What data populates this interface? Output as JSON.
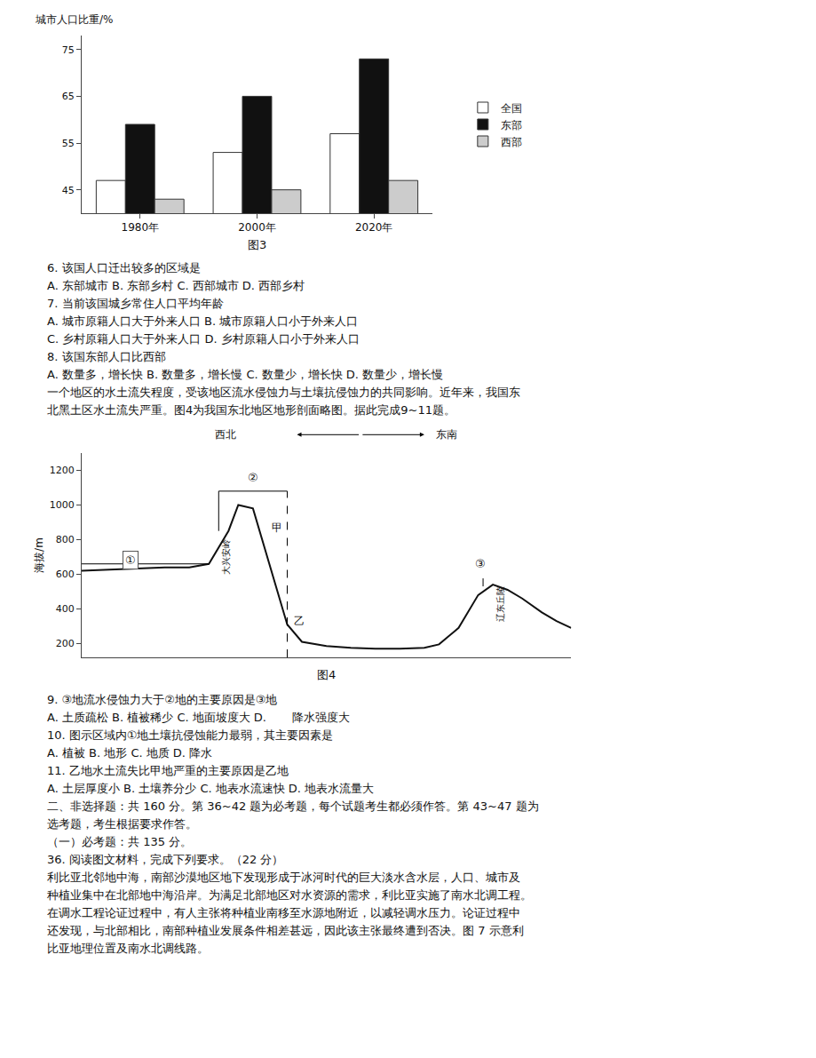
{
  "chart_data": [
    {
      "type": "bar",
      "title": "图3",
      "ylabel": "城市人口比重/%",
      "categories": [
        "1980年",
        "2000年",
        "2020年"
      ],
      "series": [
        {
          "name": "全国",
          "color": "#ffffff",
          "values": [
            47,
            53,
            57
          ]
        },
        {
          "name": "东部",
          "color": "#111111",
          "values": [
            59,
            65,
            73
          ]
        },
        {
          "name": "西部",
          "color": "#cccccc",
          "values": [
            43,
            45,
            47
          ]
        }
      ],
      "ylim": [
        40,
        78
      ],
      "yticks": [
        45,
        55,
        65,
        75
      ],
      "grid": false,
      "legend": "right",
      "annotations": [
        "6. 该国人口迁出较多的区域是",
        "A. 东部城市 B. 东部乡村 C. 西部城市 D. 西部乡村",
        "7. 当前该国城乡常住人口平均年龄",
        "A. 城市原籍人口大于外来人口 B. 城市原籍人口小于外来人口",
        "C. 乡村原籍人口大于外来人口 D. 乡村原籍人口小于外来人口",
        "8. 该国东部人口比西部",
        "A. 数量多，增长快 B. 数量多，增长慢 C. 数量少，增长快 D. 数量少，增长慢",
        "一个地区的水土流失程度，受该地区流水侵蚀力与土壤抗侵蚀力的共同影响。近年来，我国东",
        "北黑土区水土流失严重。图4为我国东北地区地形剖面略图。据此完成9~11题。"
      ]
    },
    {
      "type": "line",
      "title": "图4",
      "ylabel": "海拔/m",
      "x": [
        0.0,
        0.04,
        0.08,
        0.12,
        0.17,
        0.22,
        0.26,
        0.3,
        0.32,
        0.35,
        0.39,
        0.42,
        0.45,
        0.5,
        0.55,
        0.6,
        0.65,
        0.7,
        0.73,
        0.77,
        0.81,
        0.84,
        0.87,
        0.9,
        0.94,
        0.97,
        1.0
      ],
      "values": [
        620,
        625,
        630,
        635,
        640,
        640,
        660,
        850,
        1000,
        980,
        600,
        310,
        210,
        185,
        175,
        170,
        170,
        175,
        195,
        290,
        480,
        540,
        510,
        460,
        380,
        330,
        290
      ],
      "color": "#111111",
      "xlim": [
        0,
        1
      ],
      "xticks": [],
      "ylim": [
        120,
        1300
      ],
      "yticks": [
        200,
        400,
        600,
        800,
        1000,
        1200
      ],
      "grid": false,
      "tick_labels": "y",
      "annotations": [
        "西北",
        "东南",
        "①",
        "②",
        "③",
        "甲",
        "乙",
        "大兴安岭",
        "辽东丘陵",
        "9. ③地流水侵蚀力大于②地的主要原因是③地",
        "A. 土质疏松 B. 植被稀少 C. 地面坡度大 D.       降水强度大",
        "10. 图示区域内①地土壤抗侵蚀能力最弱，其主要因素是",
        "A. 植被 B. 地形 C. 地质 D. 降水",
        "11. 乙地水土流失比甲地严重的主要原因是乙地",
        "A. 土层厚度小 B. 土壤养分少 C. 地表水流速快 D. 地表水流量大",
        "二、非选择题：共 160 分。第 36~42 题为必考题，每个试题考生都必须作答。第 43~47 题为",
        "选考题，考生根据要求作答。",
        "（一）必考题：共 135 分。",
        "36. 阅读图文材料，完成下列要求。（22 分）",
        "利比亚北邻地中海，南部沙漠地区地下发现形成于冰河时代的巨大淡水含水层，人口、城市及",
        "种植业集中在北部地中海沿岸。为满足北部地区对水资源的需求，利比亚实施了南水北调工程。",
        "在调水工程论证过程中，有人主张将种植业南移至水源地附近，以减轻调水压力。论证过程中",
        "还发现，与北部相比，南部种植业发展条件相差甚远，因此该主张最终遭到否决。图 7 示意利",
        "比亚地理位置及南水北调线路。"
      ]
    }
  ]
}
